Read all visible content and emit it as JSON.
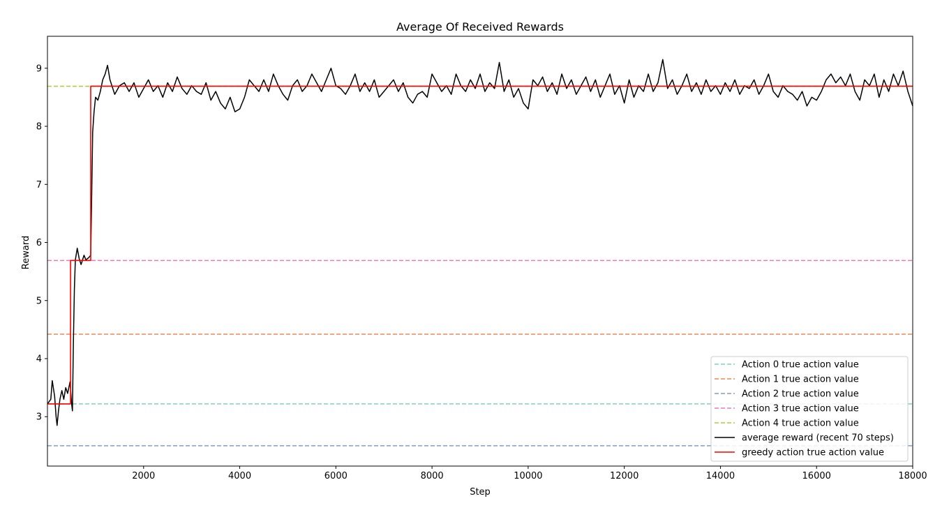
{
  "chart_data": {
    "type": "line",
    "title": "Average Of Received Rewards",
    "xlabel": "Step",
    "ylabel": "Reward",
    "xlim": [
      0,
      18000
    ],
    "ylim": [
      2.15,
      9.55
    ],
    "xticks": [
      2000,
      4000,
      6000,
      8000,
      10000,
      12000,
      14000,
      16000,
      18000
    ],
    "yticks": [
      3,
      4,
      5,
      6,
      7,
      8,
      9
    ],
    "grid": false,
    "legend_position": "lower-right",
    "reference_lines": [
      {
        "name": "Action 0 true action value",
        "value": 3.22,
        "color": "#7ecfc4",
        "style": "dashed"
      },
      {
        "name": "Action 1 true action value",
        "value": 4.42,
        "color": "#f4864f",
        "style": "dashed"
      },
      {
        "name": "Action 2 true action value",
        "value": 2.5,
        "color": "#8899c4",
        "style": "dashed"
      },
      {
        "name": "Action 3 true action value",
        "value": 5.69,
        "color": "#e67bb8",
        "style": "dashed"
      },
      {
        "name": "Action 4 true action value",
        "value": 8.69,
        "color": "#a6cf3a",
        "style": "dashed"
      }
    ],
    "series": [
      {
        "name": "average reward (recent 70 steps)",
        "color": "#000000",
        "style": "solid",
        "points": [
          [
            0,
            3.22
          ],
          [
            70,
            3.3
          ],
          [
            100,
            3.62
          ],
          [
            150,
            3.35
          ],
          [
            180,
            3.0
          ],
          [
            200,
            2.85
          ],
          [
            230,
            3.1
          ],
          [
            260,
            3.3
          ],
          [
            300,
            3.45
          ],
          [
            340,
            3.3
          ],
          [
            380,
            3.5
          ],
          [
            420,
            3.4
          ],
          [
            470,
            3.6
          ],
          [
            500,
            3.25
          ],
          [
            520,
            3.1
          ],
          [
            540,
            4.3
          ],
          [
            560,
            5.2
          ],
          [
            580,
            5.7
          ],
          [
            620,
            5.9
          ],
          [
            660,
            5.72
          ],
          [
            700,
            5.62
          ],
          [
            760,
            5.78
          ],
          [
            800,
            5.7
          ],
          [
            860,
            5.74
          ],
          [
            900,
            5.78
          ],
          [
            920,
            6.8
          ],
          [
            940,
            7.9
          ],
          [
            970,
            8.25
          ],
          [
            1000,
            8.5
          ],
          [
            1050,
            8.45
          ],
          [
            1100,
            8.6
          ],
          [
            1150,
            8.8
          ],
          [
            1200,
            8.9
          ],
          [
            1250,
            9.05
          ],
          [
            1300,
            8.8
          ],
          [
            1400,
            8.55
          ],
          [
            1500,
            8.7
          ],
          [
            1600,
            8.75
          ],
          [
            1700,
            8.6
          ],
          [
            1800,
            8.75
          ],
          [
            1900,
            8.5
          ],
          [
            2000,
            8.65
          ],
          [
            2100,
            8.8
          ],
          [
            2200,
            8.6
          ],
          [
            2300,
            8.7
          ],
          [
            2400,
            8.5
          ],
          [
            2500,
            8.75
          ],
          [
            2600,
            8.6
          ],
          [
            2700,
            8.85
          ],
          [
            2800,
            8.65
          ],
          [
            2900,
            8.55
          ],
          [
            3000,
            8.7
          ],
          [
            3100,
            8.6
          ],
          [
            3200,
            8.55
          ],
          [
            3300,
            8.75
          ],
          [
            3400,
            8.45
          ],
          [
            3500,
            8.6
          ],
          [
            3600,
            8.4
          ],
          [
            3700,
            8.3
          ],
          [
            3800,
            8.5
          ],
          [
            3900,
            8.25
          ],
          [
            4000,
            8.3
          ],
          [
            4100,
            8.5
          ],
          [
            4200,
            8.8
          ],
          [
            4300,
            8.7
          ],
          [
            4400,
            8.6
          ],
          [
            4500,
            8.8
          ],
          [
            4600,
            8.6
          ],
          [
            4700,
            8.9
          ],
          [
            4800,
            8.7
          ],
          [
            4900,
            8.55
          ],
          [
            5000,
            8.45
          ],
          [
            5100,
            8.7
          ],
          [
            5200,
            8.8
          ],
          [
            5300,
            8.6
          ],
          [
            5400,
            8.7
          ],
          [
            5500,
            8.9
          ],
          [
            5600,
            8.75
          ],
          [
            5700,
            8.6
          ],
          [
            5800,
            8.8
          ],
          [
            5900,
            9.0
          ],
          [
            6000,
            8.7
          ],
          [
            6100,
            8.65
          ],
          [
            6200,
            8.55
          ],
          [
            6300,
            8.7
          ],
          [
            6400,
            8.9
          ],
          [
            6500,
            8.6
          ],
          [
            6600,
            8.75
          ],
          [
            6700,
            8.6
          ],
          [
            6800,
            8.8
          ],
          [
            6900,
            8.5
          ],
          [
            7000,
            8.6
          ],
          [
            7100,
            8.7
          ],
          [
            7200,
            8.8
          ],
          [
            7300,
            8.6
          ],
          [
            7400,
            8.75
          ],
          [
            7500,
            8.5
          ],
          [
            7600,
            8.4
          ],
          [
            7700,
            8.55
          ],
          [
            7800,
            8.6
          ],
          [
            7900,
            8.5
          ],
          [
            8000,
            8.9
          ],
          [
            8100,
            8.75
          ],
          [
            8200,
            8.6
          ],
          [
            8300,
            8.7
          ],
          [
            8400,
            8.55
          ],
          [
            8500,
            8.9
          ],
          [
            8600,
            8.7
          ],
          [
            8700,
            8.6
          ],
          [
            8800,
            8.8
          ],
          [
            8900,
            8.65
          ],
          [
            9000,
            8.9
          ],
          [
            9100,
            8.6
          ],
          [
            9200,
            8.75
          ],
          [
            9300,
            8.65
          ],
          [
            9400,
            9.1
          ],
          [
            9500,
            8.6
          ],
          [
            9600,
            8.8
          ],
          [
            9700,
            8.5
          ],
          [
            9800,
            8.65
          ],
          [
            9900,
            8.4
          ],
          [
            10000,
            8.3
          ],
          [
            10100,
            8.8
          ],
          [
            10200,
            8.7
          ],
          [
            10300,
            8.85
          ],
          [
            10400,
            8.6
          ],
          [
            10500,
            8.75
          ],
          [
            10600,
            8.55
          ],
          [
            10700,
            8.9
          ],
          [
            10800,
            8.65
          ],
          [
            10900,
            8.8
          ],
          [
            11000,
            8.55
          ],
          [
            11100,
            8.7
          ],
          [
            11200,
            8.85
          ],
          [
            11300,
            8.6
          ],
          [
            11400,
            8.8
          ],
          [
            11500,
            8.5
          ],
          [
            11600,
            8.7
          ],
          [
            11700,
            8.9
          ],
          [
            11800,
            8.55
          ],
          [
            11900,
            8.7
          ],
          [
            12000,
            8.4
          ],
          [
            12100,
            8.8
          ],
          [
            12200,
            8.5
          ],
          [
            12300,
            8.7
          ],
          [
            12400,
            8.6
          ],
          [
            12500,
            8.9
          ],
          [
            12600,
            8.6
          ],
          [
            12700,
            8.75
          ],
          [
            12800,
            9.15
          ],
          [
            12900,
            8.65
          ],
          [
            13000,
            8.8
          ],
          [
            13100,
            8.55
          ],
          [
            13200,
            8.7
          ],
          [
            13300,
            8.9
          ],
          [
            13400,
            8.6
          ],
          [
            13500,
            8.75
          ],
          [
            13600,
            8.55
          ],
          [
            13700,
            8.8
          ],
          [
            13800,
            8.6
          ],
          [
            13900,
            8.7
          ],
          [
            14000,
            8.55
          ],
          [
            14100,
            8.75
          ],
          [
            14200,
            8.6
          ],
          [
            14300,
            8.8
          ],
          [
            14400,
            8.55
          ],
          [
            14500,
            8.7
          ],
          [
            14600,
            8.65
          ],
          [
            14700,
            8.8
          ],
          [
            14800,
            8.55
          ],
          [
            14900,
            8.7
          ],
          [
            15000,
            8.9
          ],
          [
            15100,
            8.6
          ],
          [
            15200,
            8.5
          ],
          [
            15300,
            8.7
          ],
          [
            15400,
            8.6
          ],
          [
            15500,
            8.55
          ],
          [
            15600,
            8.45
          ],
          [
            15700,
            8.6
          ],
          [
            15800,
            8.35
          ],
          [
            15900,
            8.5
          ],
          [
            16000,
            8.45
          ],
          [
            16100,
            8.6
          ],
          [
            16200,
            8.8
          ],
          [
            16300,
            8.9
          ],
          [
            16400,
            8.75
          ],
          [
            16500,
            8.85
          ],
          [
            16600,
            8.7
          ],
          [
            16700,
            8.9
          ],
          [
            16800,
            8.6
          ],
          [
            16900,
            8.45
          ],
          [
            17000,
            8.8
          ],
          [
            17100,
            8.7
          ],
          [
            17200,
            8.9
          ],
          [
            17300,
            8.5
          ],
          [
            17400,
            8.8
          ],
          [
            17500,
            8.6
          ],
          [
            17600,
            8.9
          ],
          [
            17700,
            8.7
          ],
          [
            17800,
            8.95
          ],
          [
            17900,
            8.6
          ],
          [
            18000,
            8.35
          ]
        ]
      },
      {
        "name": "greedy action true action value",
        "color": "#ff0000",
        "style": "solid",
        "points": [
          [
            0,
            3.22
          ],
          [
            480,
            3.22
          ],
          [
            480,
            5.69
          ],
          [
            900,
            5.69
          ],
          [
            900,
            8.69
          ],
          [
            18000,
            8.69
          ]
        ]
      }
    ]
  }
}
